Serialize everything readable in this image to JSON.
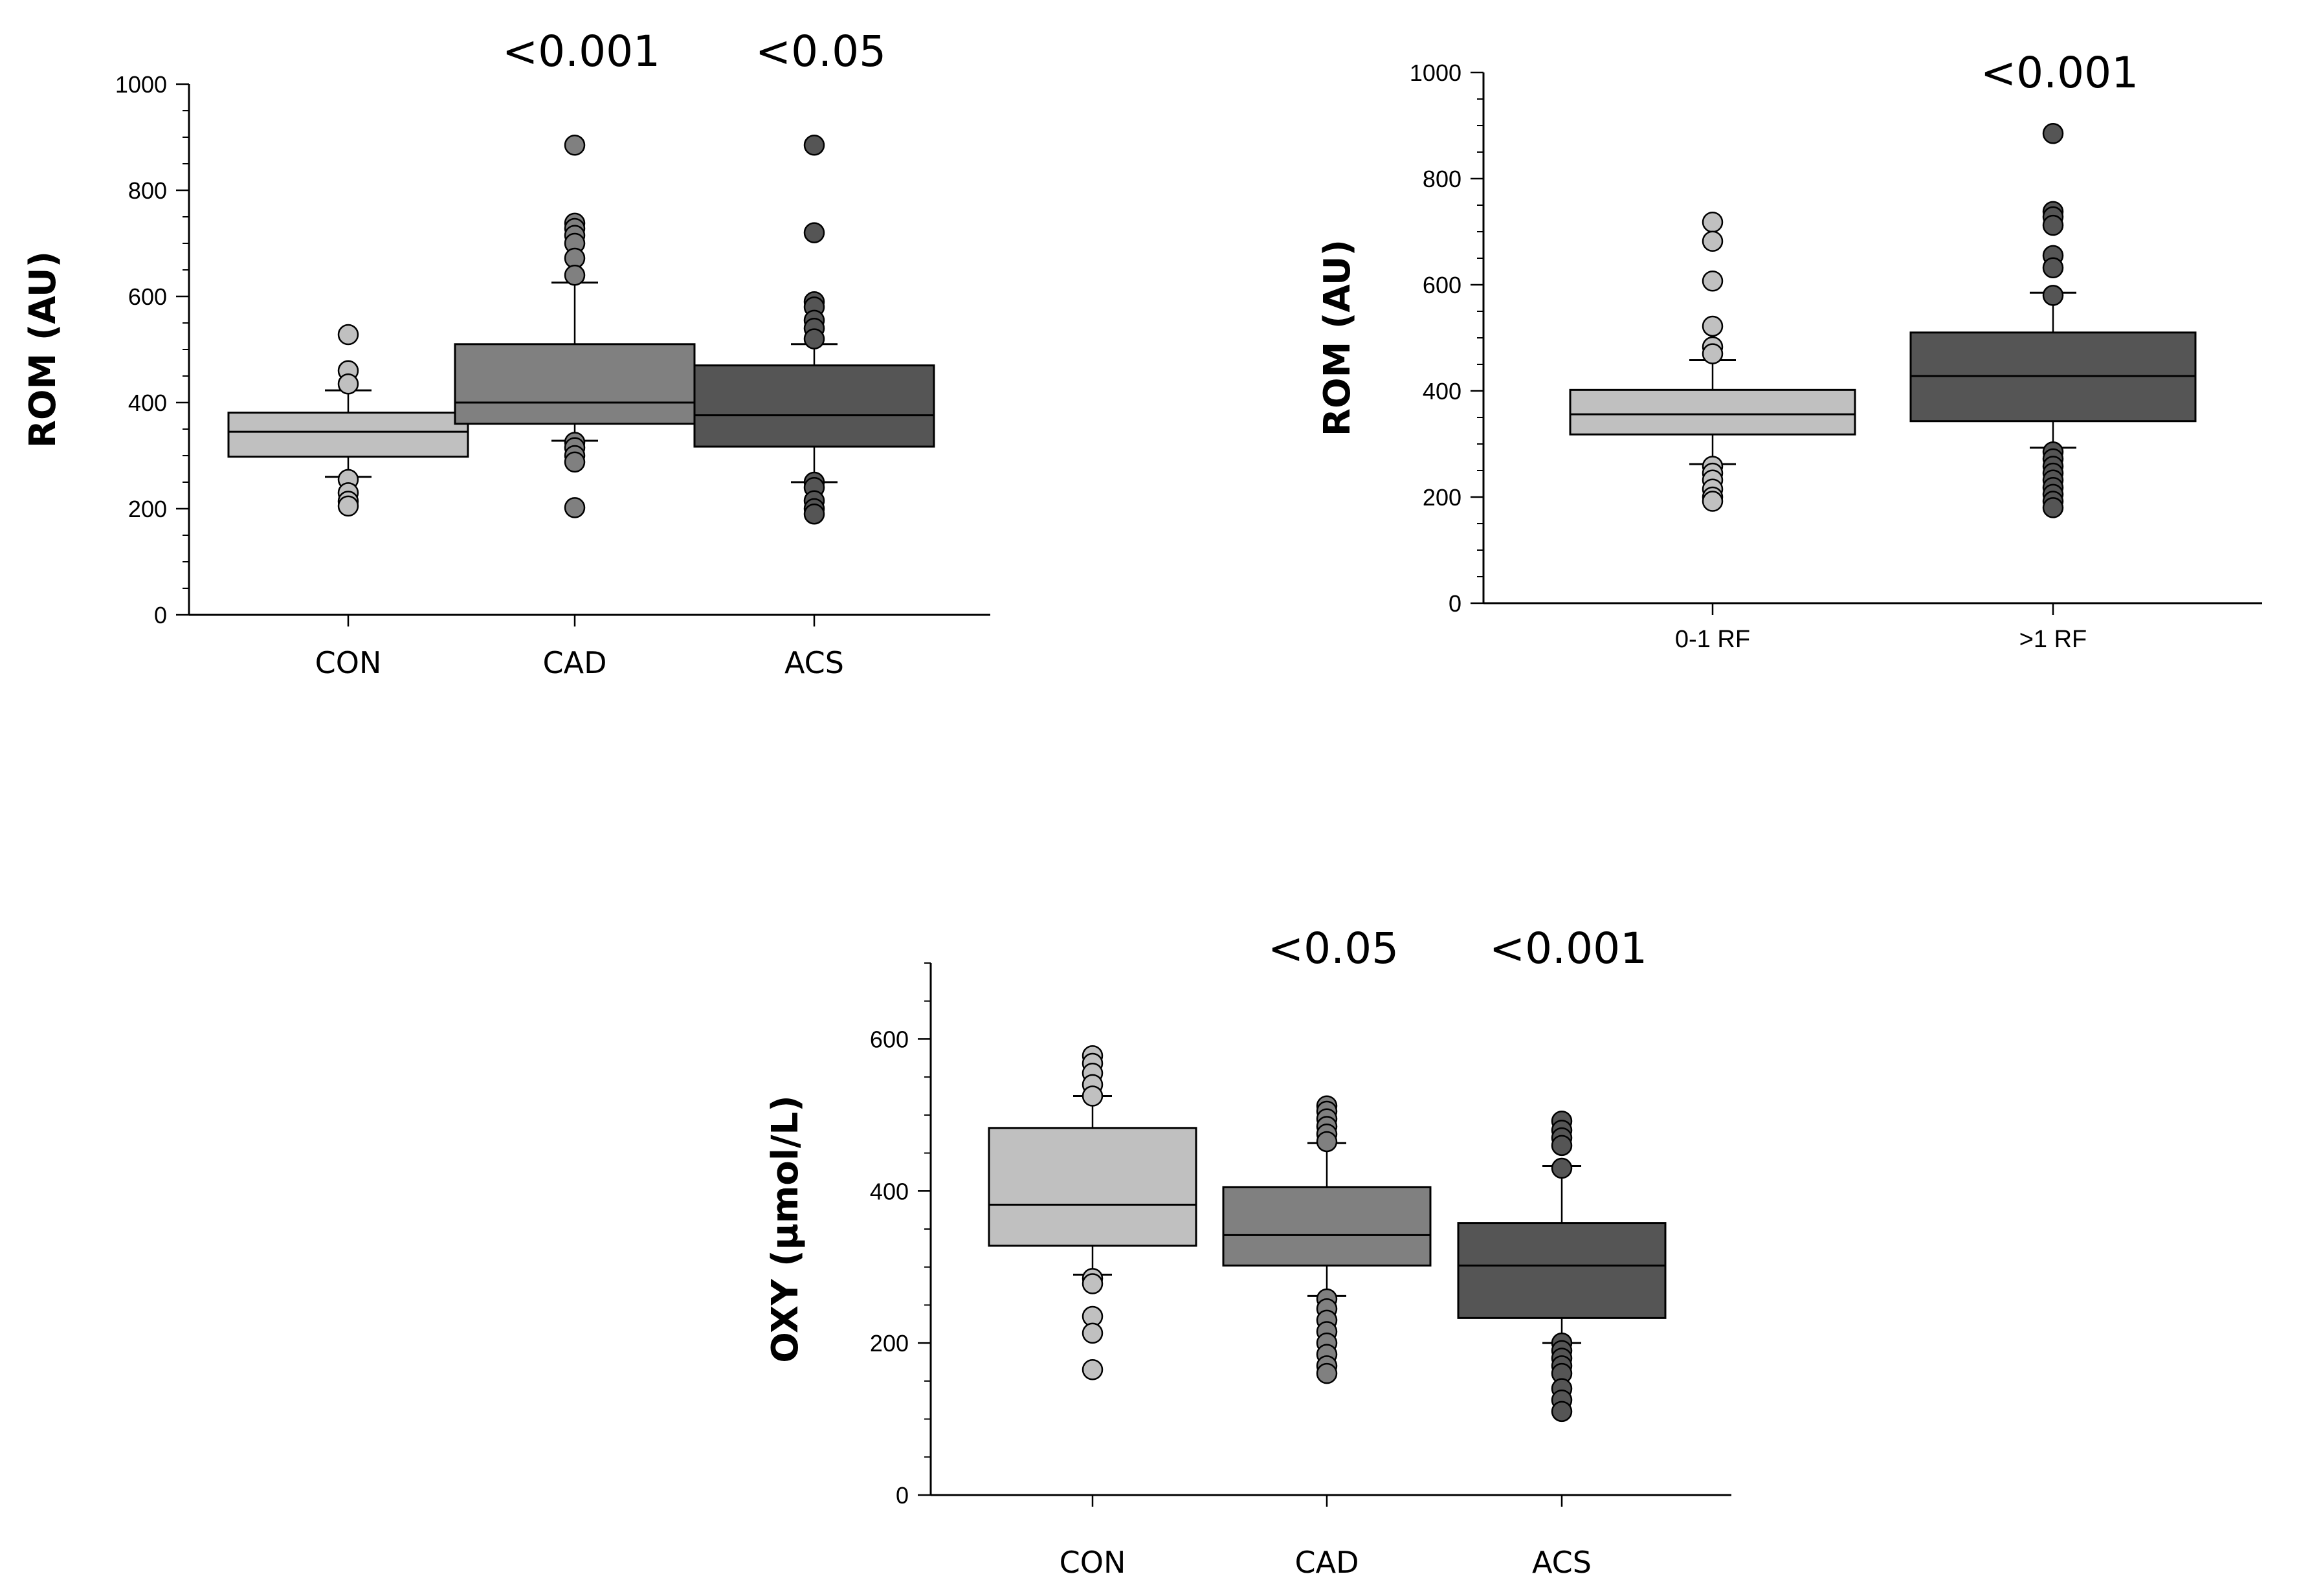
{
  "chart_data": [
    {
      "type": "box",
      "ylabel": "ROM (AU)",
      "ylim": [
        0,
        1000
      ],
      "yticks": [
        0,
        200,
        400,
        600,
        800,
        1000
      ],
      "categories": [
        "CON",
        "CAD",
        "ACS"
      ],
      "series": [
        {
          "name": "CON",
          "color": "#c0c0c0",
          "q1": 298,
          "median": 345,
          "q3": 381,
          "whisker_low": 260,
          "whisker_high": 423,
          "outliers": [
            528,
            460,
            435,
            255,
            230,
            214,
            205
          ],
          "p_label": ""
        },
        {
          "name": "CAD",
          "color": "#808080",
          "q1": 360,
          "median": 400,
          "q3": 510,
          "whisker_low": 328,
          "whisker_high": 626,
          "outliers": [
            885,
            738,
            728,
            715,
            700,
            672,
            640,
            325,
            315,
            300,
            288,
            202
          ],
          "p_label": "<0.001"
        },
        {
          "name": "ACS",
          "color": "#555555",
          "q1": 317,
          "median": 376,
          "q3": 470,
          "whisker_low": 250,
          "whisker_high": 510,
          "outliers": [
            885,
            720,
            590,
            580,
            555,
            540,
            520,
            250,
            240,
            215,
            200,
            190
          ],
          "p_label": "<0.05"
        }
      ]
    },
    {
      "type": "box",
      "ylabel": "ROM (AU)",
      "ylim": [
        0,
        1000
      ],
      "yticks": [
        0,
        200,
        400,
        600,
        800,
        1000
      ],
      "categories": [
        "0-1 RF",
        ">1 RF"
      ],
      "series": [
        {
          "name": "0-1 RF",
          "color": "#c0c0c0",
          "q1": 318,
          "median": 356,
          "q3": 402,
          "whisker_low": 262,
          "whisker_high": 458,
          "outliers": [
            718,
            682,
            607,
            522,
            483,
            470,
            258,
            245,
            232,
            215,
            200,
            192
          ],
          "p_label": ""
        },
        {
          "name": ">1 RF",
          "color": "#555555",
          "q1": 343,
          "median": 428,
          "q3": 510,
          "whisker_low": 293,
          "whisker_high": 585,
          "outliers": [
            885,
            738,
            728,
            712,
            655,
            632,
            580,
            285,
            272,
            258,
            245,
            232,
            218,
            205,
            192,
            180
          ],
          "p_label": "<0.001"
        }
      ]
    },
    {
      "type": "box",
      "ylabel": "OXY (µmol/L)",
      "ylim": [
        0,
        700
      ],
      "yticks": [
        0,
        200,
        400,
        600
      ],
      "categories": [
        "CON",
        "CAD",
        "ACS"
      ],
      "series": [
        {
          "name": "CON",
          "color": "#c0c0c0",
          "q1": 328,
          "median": 382,
          "q3": 483,
          "whisker_low": 290,
          "whisker_high": 525,
          "outliers": [
            578,
            568,
            555,
            540,
            525,
            285,
            278,
            235,
            213,
            165
          ],
          "p_label": ""
        },
        {
          "name": "CAD",
          "color": "#808080",
          "q1": 302,
          "median": 342,
          "q3": 405,
          "whisker_low": 262,
          "whisker_high": 463,
          "outliers": [
            512,
            505,
            495,
            485,
            475,
            465,
            258,
            245,
            230,
            215,
            200,
            185,
            170,
            160
          ],
          "p_label": "<0.05"
        },
        {
          "name": "ACS",
          "color": "#555555",
          "q1": 233,
          "median": 302,
          "q3": 358,
          "whisker_low": 200,
          "whisker_high": 433,
          "outliers": [
            492,
            480,
            470,
            460,
            430,
            200,
            190,
            180,
            170,
            160,
            140,
            125,
            110
          ],
          "p_label": "<0.001"
        }
      ]
    }
  ]
}
